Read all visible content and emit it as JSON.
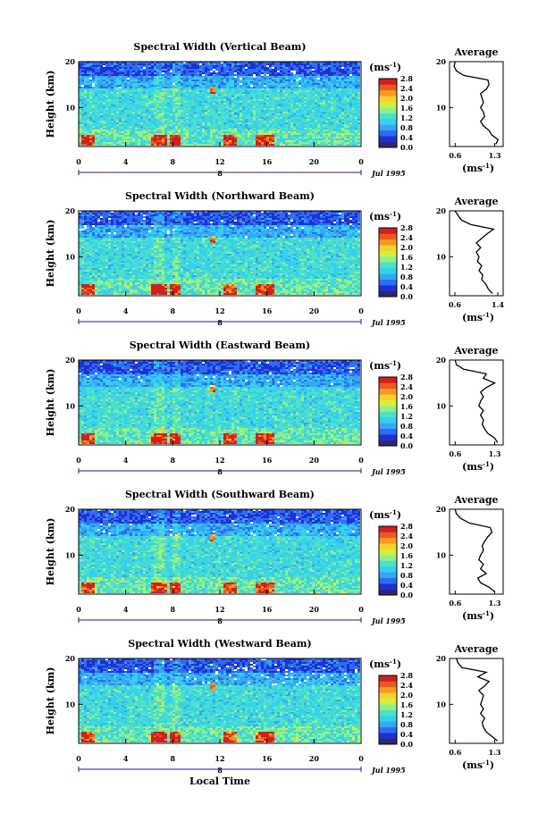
{
  "figure": {
    "xlabel": "Local Time",
    "date_label": "Jul 1995",
    "day_marker": "8"
  },
  "colorbar": {
    "unit": "(ms",
    "unit_exp": "-1",
    "unit_close": ")",
    "ticks": [
      "0.0",
      "0.4",
      "0.8",
      "1.2",
      "1.6",
      "2.0",
      "2.4",
      "2.8"
    ],
    "colors": [
      "#2a2a6e",
      "#1f2fd6",
      "#2f6cf0",
      "#35a8f2",
      "#33d0f0",
      "#4fe0c8",
      "#8ef08a",
      "#d6ee3a",
      "#f6d12c",
      "#f59a22",
      "#ea5a1e",
      "#d21f1c"
    ]
  },
  "chart_data": [
    {
      "type": "heatmap",
      "title": "Spectral Width (Vertical Beam)",
      "ylabel": "Height (km)",
      "x_ticks": [
        "0",
        "4",
        "8",
        "12",
        "16",
        "20",
        "0"
      ],
      "xlim": [
        0,
        24
      ],
      "y_ticks": [
        "10",
        "20"
      ],
      "ylim": [
        1.5,
        20
      ],
      "colorbar_range": [
        0.0,
        2.8
      ],
      "profile": {
        "title": "Average",
        "x_ticks": [
          "0.6",
          "1.3"
        ],
        "xlim": [
          0.5,
          1.45
        ],
        "xlabel": "(ms",
        "xlabel_exp": "-1",
        "xlabel_close": ")",
        "y_ticks": [
          "10",
          "20"
        ],
        "heights": [
          2,
          3,
          4,
          5,
          6,
          7,
          8,
          9,
          10,
          11,
          12,
          13,
          14,
          15,
          16,
          17,
          18,
          19,
          20
        ],
        "values": [
          1.32,
          1.36,
          1.25,
          1.2,
          1.1,
          1.05,
          1.12,
          1.1,
          1.05,
          1.1,
          1.08,
          1.05,
          1.15,
          1.2,
          1.18,
          0.75,
          0.62,
          0.58,
          0.6
        ]
      }
    },
    {
      "type": "heatmap",
      "title": "Spectral Width (Northward Beam)",
      "ylabel": "Height (km)",
      "x_ticks": [
        "0",
        "4",
        "8",
        "12",
        "16",
        "20",
        "0"
      ],
      "xlim": [
        0,
        24
      ],
      "y_ticks": [
        "10",
        "20"
      ],
      "ylim": [
        1.5,
        20
      ],
      "colorbar_range": [
        0.0,
        2.8
      ],
      "profile": {
        "title": "Average",
        "x_ticks": [
          "0.6",
          "1.4"
        ],
        "xlim": [
          0.5,
          1.5
        ],
        "xlabel": "(ms",
        "xlabel_exp": "-1",
        "xlabel_close": ")",
        "y_ticks": [
          "10",
          "20"
        ],
        "heights": [
          2,
          3,
          4,
          5,
          6,
          7,
          8,
          9,
          10,
          11,
          12,
          13,
          14,
          15,
          16,
          17,
          18,
          19,
          20
        ],
        "values": [
          1.3,
          1.22,
          1.18,
          1.1,
          1.12,
          1.05,
          1.1,
          1.02,
          1.05,
          1.0,
          1.08,
          1.0,
          1.1,
          1.2,
          1.32,
          0.9,
          0.72,
          0.66,
          0.6
        ]
      }
    },
    {
      "type": "heatmap",
      "title": "Spectral Width (Eastward Beam)",
      "ylabel": "Height (km)",
      "x_ticks": [
        "0",
        "4",
        "8",
        "12",
        "16",
        "20",
        "0"
      ],
      "xlim": [
        0,
        24
      ],
      "y_ticks": [
        "10",
        "20"
      ],
      "ylim": [
        1.5,
        20
      ],
      "colorbar_range": [
        0.0,
        2.8
      ],
      "profile": {
        "title": "Average",
        "x_ticks": [
          "0.6",
          "1.3"
        ],
        "xlim": [
          0.5,
          1.45
        ],
        "xlabel": "(ms",
        "xlabel_exp": "-1",
        "xlabel_close": ")",
        "y_ticks": [
          "10",
          "20"
        ],
        "heights": [
          2,
          3,
          4,
          5,
          6,
          7,
          8,
          9,
          10,
          11,
          12,
          13,
          14,
          15,
          16,
          17,
          18,
          19,
          20
        ],
        "values": [
          1.35,
          1.3,
          1.18,
          1.12,
          1.08,
          1.1,
          1.05,
          1.1,
          1.02,
          1.05,
          1.1,
          1.05,
          1.15,
          1.3,
          1.1,
          1.15,
          0.75,
          0.62,
          0.6
        ]
      }
    },
    {
      "type": "heatmap",
      "title": "Spectral Width (Southward Beam)",
      "ylabel": "Height (km)",
      "x_ticks": [
        "0",
        "4",
        "8",
        "12",
        "16",
        "20",
        "0"
      ],
      "xlim": [
        0,
        24
      ],
      "y_ticks": [
        "10",
        "20"
      ],
      "ylim": [
        1.5,
        20
      ],
      "colorbar_range": [
        0.0,
        2.8
      ],
      "profile": {
        "title": "Average",
        "x_ticks": [
          "0.6",
          "1.3"
        ],
        "xlim": [
          0.5,
          1.45
        ],
        "xlabel": "(ms",
        "xlabel_exp": "-1",
        "xlabel_close": ")",
        "y_ticks": [
          "10",
          "20"
        ],
        "heights": [
          2,
          3,
          4,
          5,
          6,
          7,
          8,
          9,
          10,
          11,
          12,
          13,
          14,
          15,
          16,
          17,
          18,
          19,
          20
        ],
        "values": [
          1.3,
          1.2,
          1.05,
          1.0,
          1.15,
          1.05,
          1.1,
          1.02,
          1.05,
          1.1,
          1.08,
          1.12,
          1.18,
          1.25,
          1.22,
          0.85,
          0.7,
          0.62,
          0.6
        ]
      }
    },
    {
      "type": "heatmap",
      "title": "Spectral Width (Westward Beam)",
      "ylabel": "Height (km)",
      "x_ticks": [
        "0",
        "4",
        "8",
        "12",
        "16",
        "20",
        "0"
      ],
      "xlim": [
        0,
        24
      ],
      "y_ticks": [
        "10",
        "20"
      ],
      "ylim": [
        1.5,
        20
      ],
      "colorbar_range": [
        0.0,
        2.8
      ],
      "profile": {
        "title": "Average",
        "x_ticks": [
          "0.6",
          "1.3"
        ],
        "xlim": [
          0.5,
          1.45
        ],
        "xlabel": "(ms",
        "xlabel_exp": "-1",
        "xlabel_close": ")",
        "y_ticks": [
          "10",
          "20"
        ],
        "heights": [
          2,
          3,
          4,
          5,
          6,
          7,
          8,
          9,
          10,
          11,
          12,
          13,
          14,
          15,
          16,
          17,
          18,
          19,
          20
        ],
        "values": [
          1.35,
          1.25,
          1.15,
          1.1,
          1.08,
          1.12,
          1.05,
          1.1,
          1.05,
          1.08,
          1.1,
          1.02,
          1.12,
          1.2,
          1.0,
          1.15,
          0.72,
          0.65,
          0.62
        ]
      }
    }
  ]
}
